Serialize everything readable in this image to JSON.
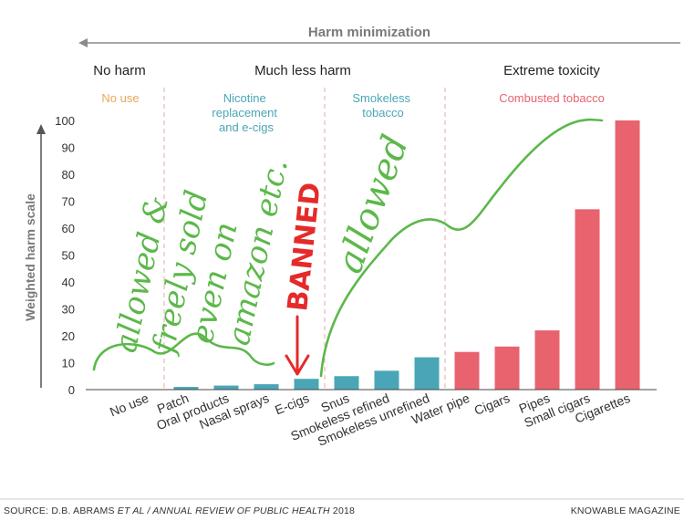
{
  "chart_data": {
    "type": "bar",
    "title": "Harm minimization",
    "ylabel": "Weighted harm scale",
    "ylim": [
      0,
      100
    ],
    "yticks": [
      "0",
      "10",
      "20",
      "30",
      "40",
      "50",
      "60",
      "70",
      "80",
      "90",
      "100"
    ],
    "zones": [
      "No harm",
      "Much less harm",
      "Extreme toxicity"
    ],
    "groups": [
      {
        "label": "No use",
        "color": "#e8a85c"
      },
      {
        "label": "Nicotine replacement and e-cigs",
        "lines": [
          "Nicotine",
          "replacement",
          "and e-cigs"
        ],
        "color": "#4aa6b6"
      },
      {
        "label": "Smokeless tobacco",
        "lines": [
          "Smokeless",
          "tobacco"
        ],
        "color": "#4aa6b6"
      },
      {
        "label": "Combusted tobacco",
        "color": "#e8636e"
      }
    ],
    "categories": [
      "No use",
      "Patch",
      "Oral products",
      "Nasal sprays",
      "E-cigs",
      "Snus",
      "Smokeless refined",
      "Smokeless unrefined",
      "Water pipe",
      "Cigars",
      "Pipes",
      "Small cigars",
      "Cigarettes"
    ],
    "values": [
      0,
      1,
      1.5,
      2,
      4,
      5,
      7,
      12,
      14,
      16,
      22,
      67,
      100
    ],
    "bar_colors": [
      "#4aa6b6",
      "#4aa6b6",
      "#4aa6b6",
      "#4aa6b6",
      "#4aa6b6",
      "#4aa6b6",
      "#4aa6b6",
      "#4aa6b6",
      "#e8636e",
      "#e8636e",
      "#e8636e",
      "#e8636e",
      "#e8636e"
    ]
  },
  "annotations": {
    "allowed_sold": [
      "allowed &",
      "freely sold",
      "even on",
      "amazon etc."
    ],
    "banned": "BANNED",
    "allowed": "allowed"
  },
  "footer": {
    "source_prefix": "SOURCE: D.B. ABRAMS ",
    "source_italic": "ET AL / ANNUAL REVIEW OF PUBLIC HEALTH",
    "source_year": " 2018",
    "publisher": "KNOWABLE MAGAZINE"
  },
  "colors": {
    "teal": "#4aa6b6",
    "red": "#e8636e",
    "orange": "#e8a85c",
    "hand_green": "#5cb84a",
    "hand_red": "#e52a2a"
  }
}
